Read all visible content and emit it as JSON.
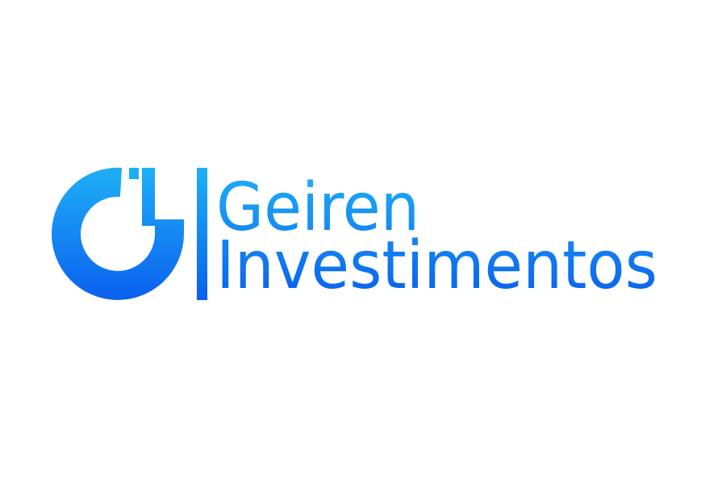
{
  "logo": {
    "line1": "Geiren",
    "line2": "Investimentos"
  }
}
